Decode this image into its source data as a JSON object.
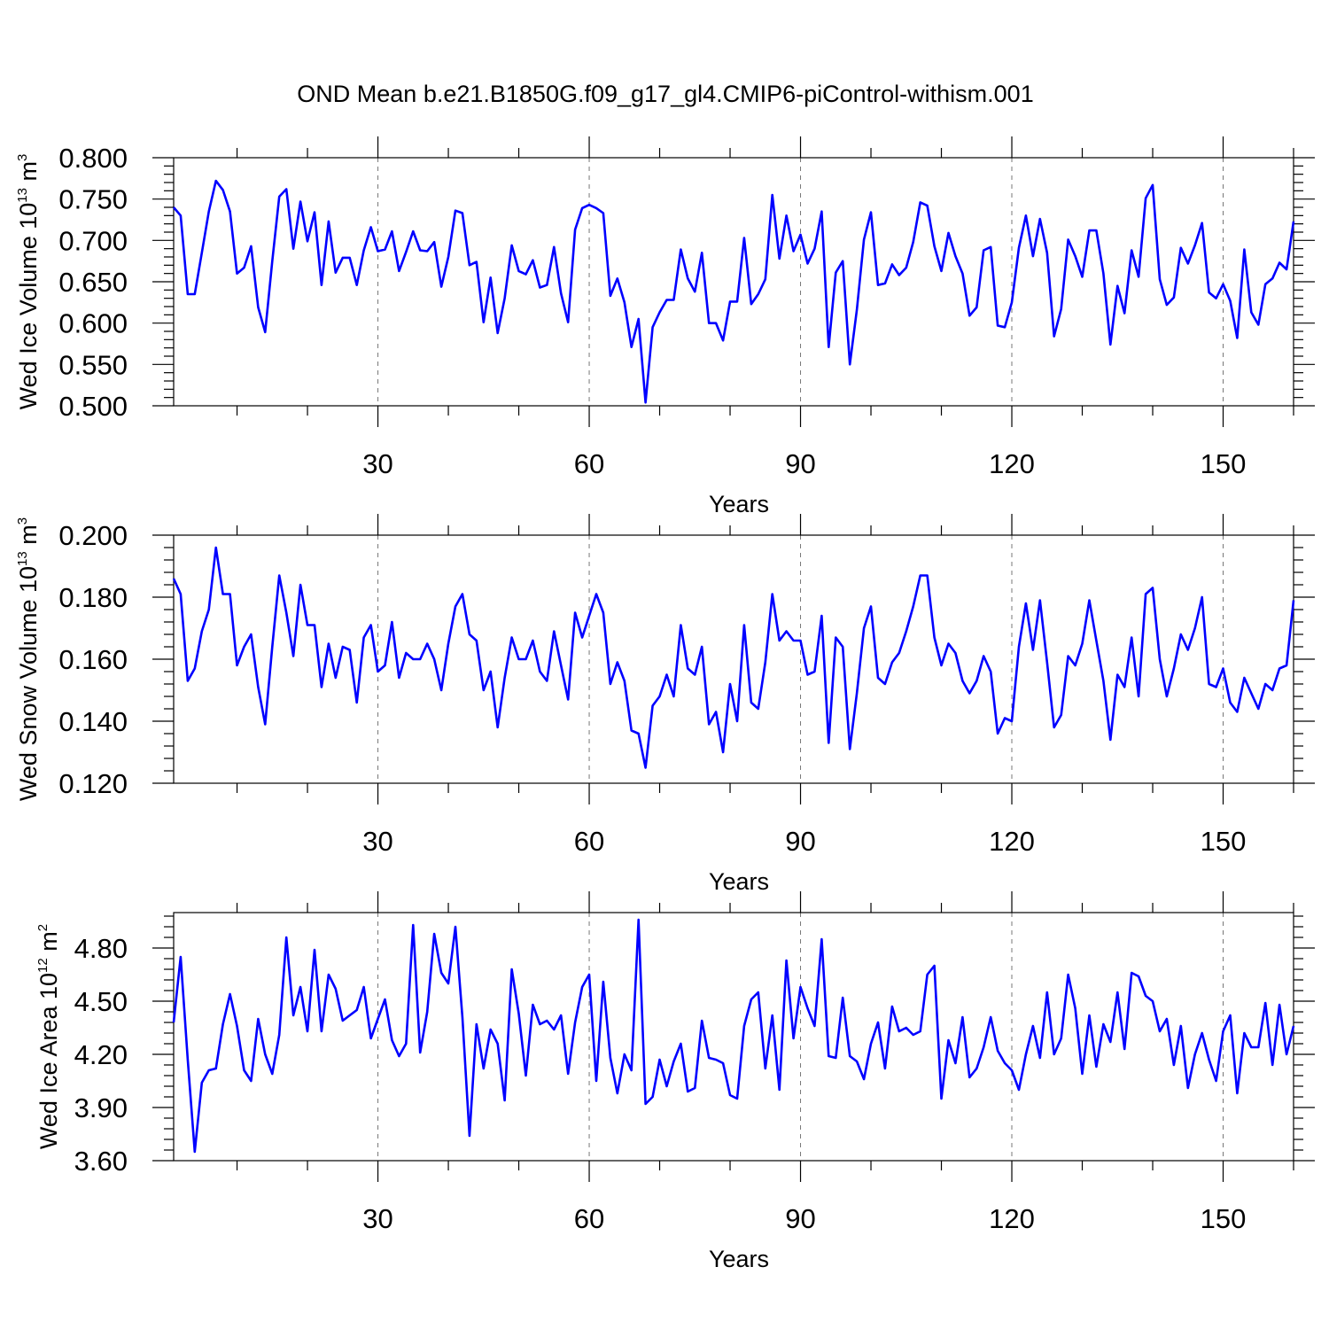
{
  "title": "OND Mean b.e21.B1850G.f09_g17_gl4.CMIP6-piControl-withism.001",
  "colors": {
    "line": "#0000ff",
    "axis": "#000000",
    "grid": "#777777"
  },
  "chart_data": [
    {
      "type": "line",
      "panel": "top",
      "ylabel_text": "Wed Ice Volume 10",
      "ylabel_exp": "13",
      "ylabel_unit": " m",
      "ylabel_unit_exp": "3",
      "xlabel": "Years",
      "x_ticks": [
        30,
        60,
        90,
        120,
        150
      ],
      "x_tick_labels": [
        "30",
        "60",
        "90",
        "120",
        "150"
      ],
      "xlim": [
        1,
        160
      ],
      "y_ticks": [
        0.5,
        0.55,
        0.6,
        0.65,
        0.7,
        0.75,
        0.8
      ],
      "y_tick_labels": [
        "0.500",
        "0.550",
        "0.600",
        "0.650",
        "0.700",
        "0.750",
        "0.800"
      ],
      "ylim": [
        0.5,
        0.8
      ],
      "grid": "vertical dashed at x ticks",
      "x_start": 1,
      "values": [
        0.74,
        0.73,
        0.635,
        0.635,
        0.685,
        0.735,
        0.772,
        0.761,
        0.735,
        0.66,
        0.667,
        0.693,
        0.619,
        0.589,
        0.675,
        0.753,
        0.762,
        0.69,
        0.747,
        0.699,
        0.734,
        0.646,
        0.723,
        0.661,
        0.679,
        0.679,
        0.646,
        0.688,
        0.716,
        0.687,
        0.689,
        0.711,
        0.663,
        0.686,
        0.711,
        0.688,
        0.687,
        0.698,
        0.644,
        0.68,
        0.736,
        0.733,
        0.67,
        0.674,
        0.601,
        0.655,
        0.588,
        0.63,
        0.694,
        0.663,
        0.659,
        0.676,
        0.643,
        0.646,
        0.692,
        0.636,
        0.601,
        0.713,
        0.739,
        0.743,
        0.739,
        0.733,
        0.633,
        0.654,
        0.625,
        0.571,
        0.605,
        0.504,
        0.595,
        0.613,
        0.628,
        0.628,
        0.689,
        0.654,
        0.638,
        0.685,
        0.6,
        0.6,
        0.579,
        0.626,
        0.626,
        0.703,
        0.623,
        0.635,
        0.653,
        0.755,
        0.678,
        0.73,
        0.687,
        0.707,
        0.672,
        0.69,
        0.735,
        0.571,
        0.661,
        0.675,
        0.55,
        0.616,
        0.701,
        0.734,
        0.646,
        0.648,
        0.671,
        0.658,
        0.667,
        0.698,
        0.746,
        0.742,
        0.693,
        0.663,
        0.709,
        0.681,
        0.66,
        0.609,
        0.619,
        0.688,
        0.692,
        0.597,
        0.595,
        0.625,
        0.691,
        0.73,
        0.681,
        0.726,
        0.685,
        0.584,
        0.617,
        0.701,
        0.681,
        0.656,
        0.712,
        0.712,
        0.66,
        0.574,
        0.645,
        0.612,
        0.688,
        0.656,
        0.751,
        0.767,
        0.653,
        0.622,
        0.631,
        0.691,
        0.672,
        0.694,
        0.721,
        0.637,
        0.63,
        0.647,
        0.627,
        0.582,
        0.689,
        0.613,
        0.598,
        0.647,
        0.654,
        0.673,
        0.665,
        0.723
      ]
    },
    {
      "type": "line",
      "panel": "middle",
      "ylabel_text": "Wed Snow Volume 10",
      "ylabel_exp": "13",
      "ylabel_unit": " m",
      "ylabel_unit_exp": "3",
      "xlabel": "Years",
      "x_ticks": [
        30,
        60,
        90,
        120,
        150
      ],
      "x_tick_labels": [
        "30",
        "60",
        "90",
        "120",
        "150"
      ],
      "xlim": [
        1,
        160
      ],
      "y_ticks": [
        0.12,
        0.14,
        0.16,
        0.18,
        0.2
      ],
      "y_tick_labels": [
        "0.120",
        "0.140",
        "0.160",
        "0.180",
        "0.200"
      ],
      "ylim": [
        0.12,
        0.2
      ],
      "grid": "vertical dashed at x ticks",
      "x_start": 1,
      "values": [
        0.186,
        0.181,
        0.153,
        0.157,
        0.169,
        0.176,
        0.196,
        0.181,
        0.181,
        0.158,
        0.164,
        0.168,
        0.151,
        0.139,
        0.164,
        0.187,
        0.175,
        0.161,
        0.184,
        0.171,
        0.171,
        0.151,
        0.165,
        0.154,
        0.164,
        0.163,
        0.146,
        0.167,
        0.171,
        0.156,
        0.158,
        0.172,
        0.154,
        0.162,
        0.16,
        0.16,
        0.165,
        0.16,
        0.15,
        0.165,
        0.177,
        0.181,
        0.168,
        0.166,
        0.15,
        0.156,
        0.138,
        0.154,
        0.167,
        0.16,
        0.16,
        0.166,
        0.156,
        0.153,
        0.169,
        0.158,
        0.147,
        0.175,
        0.167,
        0.174,
        0.181,
        0.175,
        0.152,
        0.159,
        0.153,
        0.137,
        0.136,
        0.125,
        0.145,
        0.148,
        0.155,
        0.148,
        0.171,
        0.157,
        0.155,
        0.164,
        0.139,
        0.143,
        0.13,
        0.152,
        0.14,
        0.171,
        0.146,
        0.144,
        0.159,
        0.181,
        0.166,
        0.169,
        0.166,
        0.166,
        0.155,
        0.156,
        0.174,
        0.133,
        0.167,
        0.164,
        0.131,
        0.149,
        0.17,
        0.177,
        0.154,
        0.152,
        0.159,
        0.162,
        0.169,
        0.177,
        0.187,
        0.187,
        0.167,
        0.158,
        0.165,
        0.162,
        0.153,
        0.149,
        0.153,
        0.161,
        0.156,
        0.136,
        0.141,
        0.14,
        0.164,
        0.178,
        0.163,
        0.179,
        0.159,
        0.138,
        0.142,
        0.161,
        0.158,
        0.165,
        0.179,
        0.166,
        0.153,
        0.134,
        0.155,
        0.151,
        0.167,
        0.148,
        0.181,
        0.183,
        0.16,
        0.148,
        0.157,
        0.168,
        0.163,
        0.17,
        0.18,
        0.152,
        0.151,
        0.157,
        0.146,
        0.143,
        0.154,
        0.149,
        0.144,
        0.152,
        0.15,
        0.157,
        0.158,
        0.179
      ]
    },
    {
      "type": "line",
      "panel": "bottom",
      "ylabel_text": "Wed Ice Area 10",
      "ylabel_exp": "12",
      "ylabel_unit": " m",
      "ylabel_unit_exp": "2",
      "xlabel": "Years",
      "x_ticks": [
        30,
        60,
        90,
        120,
        150
      ],
      "x_tick_labels": [
        "30",
        "60",
        "90",
        "120",
        "150"
      ],
      "xlim": [
        1,
        160
      ],
      "y_ticks": [
        3.6,
        3.9,
        4.2,
        4.5,
        4.8
      ],
      "y_tick_labels": [
        "3.60",
        "3.90",
        "4.20",
        "4.50",
        "4.80"
      ],
      "ylim": [
        3.6,
        5.0
      ],
      "grid": "vertical dashed at x ticks",
      "x_start": 1,
      "values": [
        4.38,
        4.75,
        4.17,
        3.65,
        4.04,
        4.11,
        4.12,
        4.37,
        4.54,
        4.36,
        4.11,
        4.05,
        4.4,
        4.2,
        4.09,
        4.31,
        4.86,
        4.42,
        4.58,
        4.33,
        4.79,
        4.33,
        4.65,
        4.57,
        4.39,
        4.42,
        4.45,
        4.58,
        4.29,
        4.4,
        4.51,
        4.28,
        4.19,
        4.26,
        4.93,
        4.21,
        4.44,
        4.88,
        4.66,
        4.6,
        4.92,
        4.41,
        3.74,
        4.37,
        4.12,
        4.34,
        4.26,
        3.94,
        4.68,
        4.43,
        4.08,
        4.48,
        4.37,
        4.39,
        4.34,
        4.42,
        4.09,
        4.38,
        4.58,
        4.65,
        4.05,
        4.61,
        4.18,
        3.98,
        4.2,
        4.11,
        4.96,
        3.92,
        3.96,
        4.17,
        4.02,
        4.16,
        4.26,
        3.99,
        4.01,
        4.39,
        4.18,
        4.17,
        4.15,
        3.97,
        3.95,
        4.36,
        4.51,
        4.55,
        4.12,
        4.42,
        4.0,
        4.73,
        4.29,
        4.58,
        4.46,
        4.36,
        4.85,
        4.19,
        4.18,
        4.52,
        4.19,
        4.16,
        4.06,
        4.26,
        4.38,
        4.12,
        4.47,
        4.33,
        4.35,
        4.31,
        4.33,
        4.65,
        4.7,
        3.95,
        4.28,
        4.15,
        4.41,
        4.07,
        4.12,
        4.24,
        4.41,
        4.22,
        4.15,
        4.11,
        4.0,
        4.2,
        4.36,
        4.18,
        4.55,
        4.2,
        4.29,
        4.65,
        4.46,
        4.09,
        4.42,
        4.13,
        4.37,
        4.27,
        4.55,
        4.23,
        4.66,
        4.64,
        4.53,
        4.5,
        4.33,
        4.4,
        4.14,
        4.36,
        4.01,
        4.2,
        4.32,
        4.17,
        4.05,
        4.33,
        4.42,
        3.98,
        4.32,
        4.24,
        4.24,
        4.49,
        4.14,
        4.48,
        4.2,
        4.36
      ]
    }
  ]
}
